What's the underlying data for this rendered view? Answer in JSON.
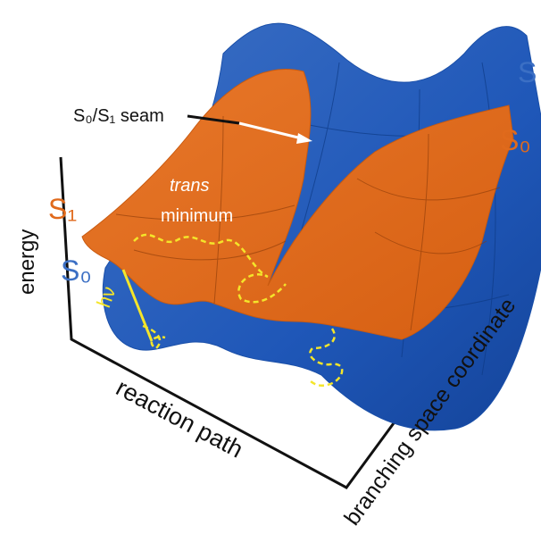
{
  "labels": {
    "seam": "S₀/S₁ seam",
    "s1_left": "S₁",
    "s0_left": "S₀",
    "s1_right": "S",
    "s0_right": "S₀",
    "trans": "trans",
    "minimum": "minimum",
    "excitation": "hν"
  },
  "axes": {
    "energy": "energy",
    "reaction_path": "reaction path",
    "branching": "branching space coordinate"
  }
}
